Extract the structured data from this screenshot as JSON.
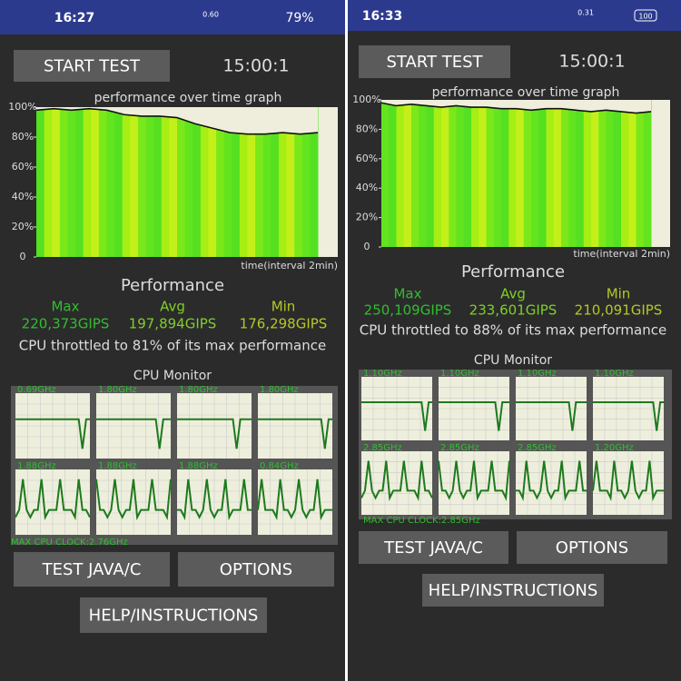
{
  "panels": [
    {
      "status": {
        "time": "16:27",
        "net_speed": "0.60",
        "battery": "79%"
      },
      "start_button": "START TEST",
      "timer": "15:00:1",
      "graph": {
        "title": "performance over time graph",
        "x_label": "time(interval 2min)",
        "ylim": [
          0,
          100
        ],
        "yticks": [
          {
            "value": 100,
            "label": "100%"
          },
          {
            "value": 80,
            "label": "80%"
          },
          {
            "value": 60,
            "label": "60%"
          },
          {
            "value": 40,
            "label": "40%"
          },
          {
            "value": 20,
            "label": "20%"
          },
          0
        ],
        "values": [
          98,
          99,
          98,
          99,
          98,
          95,
          94,
          94,
          93,
          89,
          86,
          83,
          82,
          82,
          83,
          82,
          83
        ]
      },
      "performance": {
        "title": "Performance",
        "labels": [
          "Max",
          "Avg",
          "Min"
        ],
        "values": [
          "220,373GIPS",
          "197,894GIPS",
          "176,298GIPS"
        ]
      },
      "throttle": "CPU throttled to 81% of its max performance",
      "cpu_monitor": {
        "title": "CPU Monitor",
        "cells": [
          "0.69GHz",
          "1.80GHz",
          "1.80GHz",
          "1.80GHz",
          "1.88GHz",
          "1.88GHz",
          "1.88GHz",
          "0.84GHz"
        ],
        "max_clock": "MAX CPU CLOCK:2.76GHz"
      },
      "buttons": [
        "TEST JAVA/C",
        "OPTIONS",
        "HELP/INSTRUCTIONS"
      ]
    },
    {
      "status": {
        "time": "16:33",
        "net_speed": "0.31",
        "battery": "100"
      },
      "start_button": "START TEST",
      "timer": "15:00:1",
      "graph": {
        "title": "performance over time graph",
        "x_label": "time(interval 2min)",
        "ylim": [
          0,
          100
        ],
        "yticks": [
          {
            "value": 100,
            "label": "100%"
          },
          {
            "value": 80,
            "label": "80%"
          },
          {
            "value": 60,
            "label": "60%"
          },
          {
            "value": 40,
            "label": "40%"
          },
          {
            "value": 20,
            "label": "20%"
          },
          0
        ],
        "values": [
          98,
          96,
          97,
          96,
          95,
          96,
          95,
          95,
          94,
          94,
          93,
          94,
          94,
          93,
          92,
          93,
          92,
          91,
          92
        ]
      },
      "performance": {
        "title": "Performance",
        "labels": [
          "Max",
          "Avg",
          "Min"
        ],
        "values": [
          "250,109GIPS",
          "233,601GIPS",
          "210,091GIPS"
        ]
      },
      "throttle": "CPU throttled to 88% of its max performance",
      "cpu_monitor": {
        "title": "CPU Monitor",
        "cells": [
          "1.10GHz",
          "1.10GHz",
          "1.10GHz",
          "1.10GHz",
          "2.85GHz",
          "2.85GHz",
          "2.85GHz",
          "1.20GHz"
        ],
        "max_clock": "MAX CPU CLOCK:2.85GHz"
      },
      "buttons": [
        "TEST JAVA/C",
        "OPTIONS",
        "HELP/INSTRUCTIONS"
      ]
    }
  ]
}
